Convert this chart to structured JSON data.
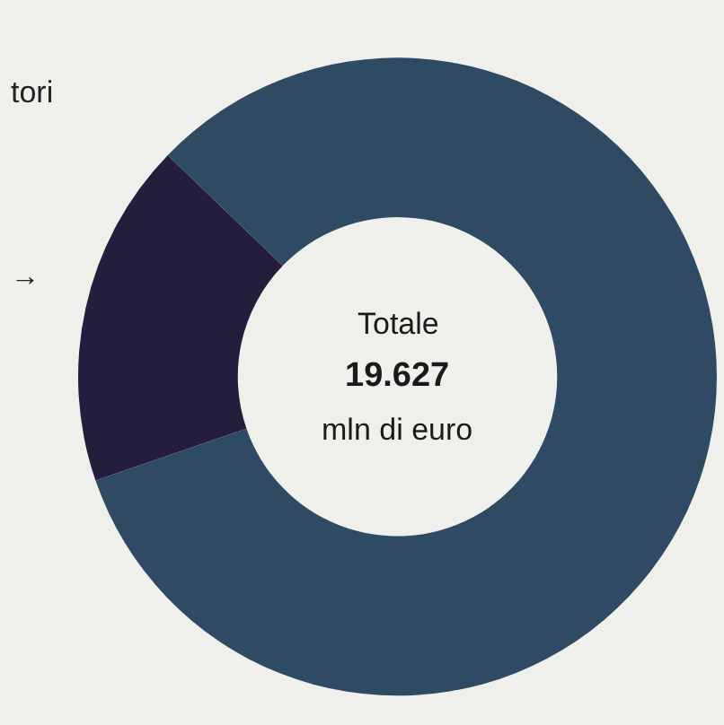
{
  "chart_data": {
    "type": "donut",
    "categories": [
      "tori",
      null
    ],
    "values": [
      17.5,
      82.5
    ],
    "colors": [
      "#241d3c",
      "#2f4b63"
    ],
    "annotations": [
      "→",
      "Totale",
      "19.627",
      "mln di euro"
    ],
    "legend": false
  }
}
